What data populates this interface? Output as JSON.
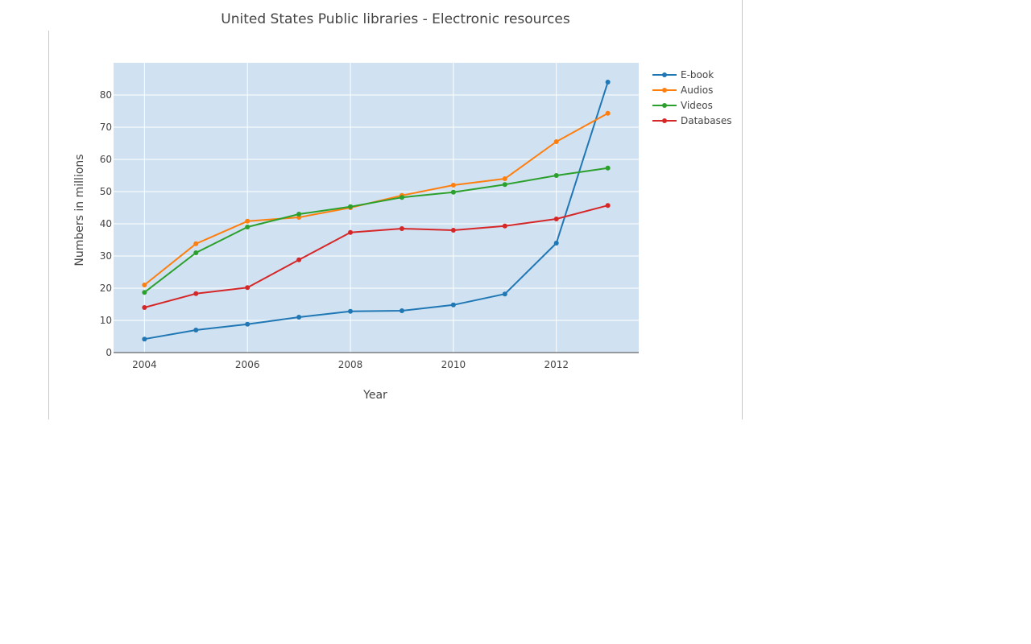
{
  "chart_data": {
    "type": "line",
    "title": "United States Public libraries - Electronic resources",
    "xlabel": "Year",
    "ylabel": "Numbers in millions",
    "x": [
      2004,
      2005,
      2006,
      2007,
      2008,
      2009,
      2010,
      2011,
      2012,
      2013
    ],
    "xticks": [
      "2004",
      "2006",
      "2008",
      "2010",
      "2012"
    ],
    "yticks": [
      "0",
      "10",
      "20",
      "30",
      "40",
      "50",
      "60",
      "70",
      "80"
    ],
    "xlim": [
      2003.4,
      2013.6
    ],
    "ylim": [
      0,
      90
    ],
    "grid": true,
    "legend_position": "top-right outside",
    "plot_background": "#d0e1f2",
    "series": [
      {
        "name": "E-book",
        "color": "#1f77b4",
        "values": [
          4.2,
          7,
          8.8,
          11,
          12.8,
          13,
          14.8,
          18.2,
          34,
          84
        ]
      },
      {
        "name": "Audios",
        "color": "#ff7f0e",
        "values": [
          21,
          33.8,
          40.8,
          42,
          45,
          48.8,
          52,
          54,
          65.5,
          74.3
        ]
      },
      {
        "name": "Videos",
        "color": "#2ca02c",
        "values": [
          18.7,
          31,
          39,
          43,
          45.3,
          48.2,
          49.8,
          52.2,
          55,
          57.3
        ]
      },
      {
        "name": "Databases",
        "color": "#d62728",
        "values": [
          14,
          18.3,
          20.2,
          28.8,
          37.3,
          38.5,
          38,
          39.3,
          41.5,
          45.7
        ]
      }
    ]
  }
}
